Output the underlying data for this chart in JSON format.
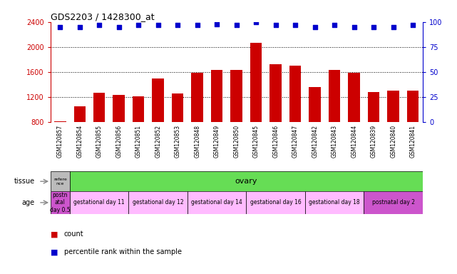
{
  "title": "GDS2203 / 1428300_at",
  "samples": [
    "GSM120857",
    "GSM120854",
    "GSM120855",
    "GSM120856",
    "GSM120851",
    "GSM120852",
    "GSM120853",
    "GSM120848",
    "GSM120849",
    "GSM120850",
    "GSM120845",
    "GSM120846",
    "GSM120847",
    "GSM120842",
    "GSM120843",
    "GSM120844",
    "GSM120839",
    "GSM120840",
    "GSM120841"
  ],
  "counts": [
    820,
    1060,
    1270,
    1240,
    1210,
    1500,
    1260,
    1590,
    1640,
    1640,
    2070,
    1730,
    1700,
    1360,
    1640,
    1590,
    1280,
    1310,
    1300
  ],
  "percentiles": [
    95,
    95,
    97,
    95,
    97,
    97,
    97,
    97,
    98,
    97,
    100,
    97,
    97,
    95,
    97,
    95,
    95,
    95,
    97
  ],
  "bar_color": "#cc0000",
  "dot_color": "#0000cc",
  "ylim_left": [
    800,
    2400
  ],
  "ylim_right": [
    0,
    100
  ],
  "yticks_left": [
    800,
    1200,
    1600,
    2000,
    2400
  ],
  "yticks_right": [
    0,
    25,
    50,
    75,
    100
  ],
  "grid_lines": [
    1200,
    1600,
    2000
  ],
  "tissue_ref_label": "refere\nnce",
  "tissue_ref_color": "#bbbbbb",
  "tissue_label": "ovary",
  "tissue_color": "#66dd55",
  "age_groups": [
    {
      "label": "postn\natal\nday 0.5",
      "color": "#cc55cc",
      "count": 1
    },
    {
      "label": "gestational day 11",
      "color": "#ffbbff",
      "count": 3
    },
    {
      "label": "gestational day 12",
      "color": "#ffbbff",
      "count": 3
    },
    {
      "label": "gestational day 14",
      "color": "#ffbbff",
      "count": 3
    },
    {
      "label": "gestational day 16",
      "color": "#ffbbff",
      "count": 3
    },
    {
      "label": "gestational day 18",
      "color": "#ffbbff",
      "count": 3
    },
    {
      "label": "postnatal day 2",
      "color": "#cc55cc",
      "count": 3
    }
  ],
  "left_axis_color": "#cc0000",
  "right_axis_color": "#0000cc",
  "xticklabel_bg": "#cccccc",
  "plot_bg_color": "#ffffff",
  "fig_bg_color": "#ffffff",
  "legend_items": [
    {
      "color": "#cc0000",
      "label": "count"
    },
    {
      "color": "#0000cc",
      "label": "percentile rank within the sample"
    }
  ]
}
